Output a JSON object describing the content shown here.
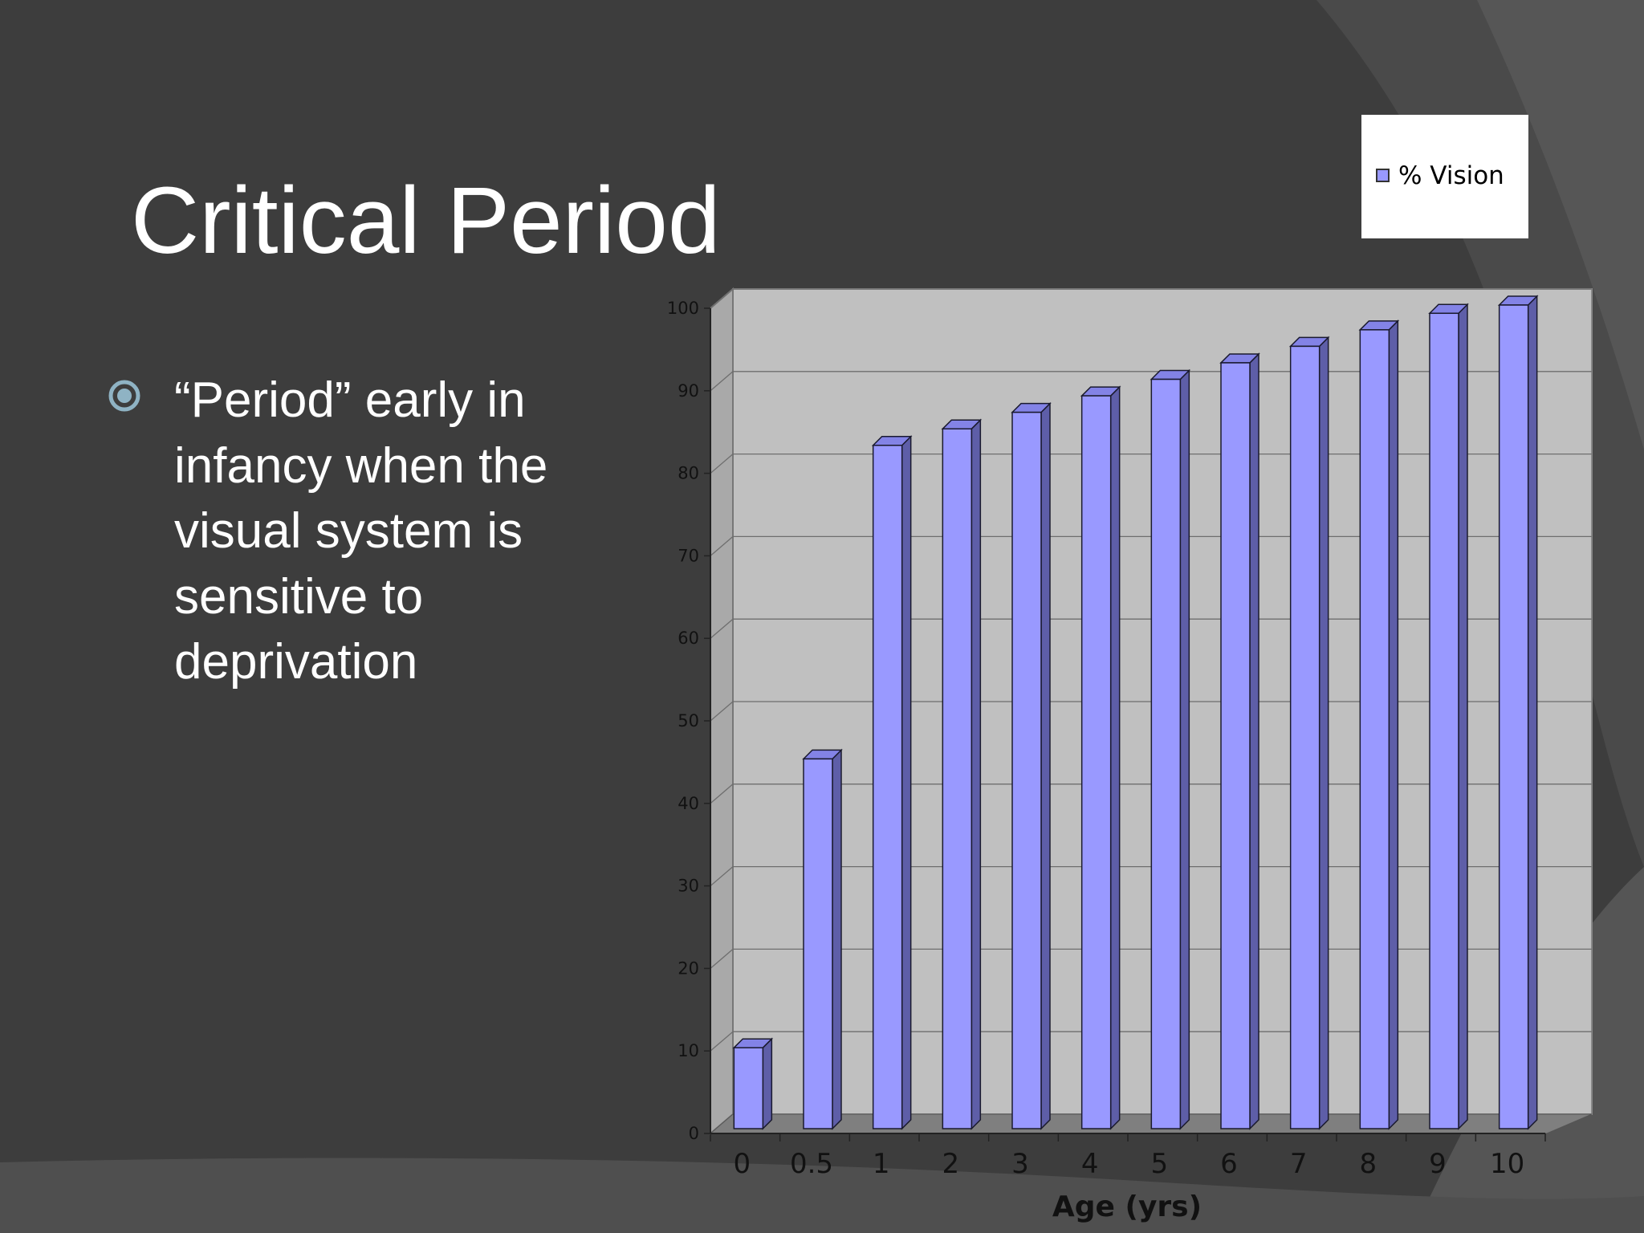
{
  "slide": {
    "title": "Critical Period",
    "bullet": "“Period” early in infancy when the visual system is sensitive to deprivation"
  },
  "colors": {
    "background": "#3d3d3d",
    "bar_face": "#9999ff",
    "bar_top": "#8383e6",
    "bar_side": "#5e5ea8",
    "plot_back": "#c0c0c0",
    "plot_floor": "#7f7f7f",
    "bullet_icon": "#8fb3c4"
  },
  "chart_data": {
    "type": "bar",
    "categories": [
      "0",
      "0.5",
      "1",
      "2",
      "3",
      "4",
      "5",
      "6",
      "7",
      "8",
      "9",
      "10"
    ],
    "series": [
      {
        "name": "% Vision",
        "values": [
          10,
          45,
          83,
          85,
          87,
          89,
          91,
          93,
          95,
          97,
          99,
          100
        ]
      }
    ],
    "xlabel": "Age (yrs)",
    "ylabel": "",
    "ylim": [
      0,
      100
    ],
    "yticks": [
      0,
      10,
      20,
      30,
      40,
      50,
      60,
      70,
      80,
      90,
      100
    ],
    "grid": true,
    "legend": "top-right",
    "style": "3d-column"
  }
}
